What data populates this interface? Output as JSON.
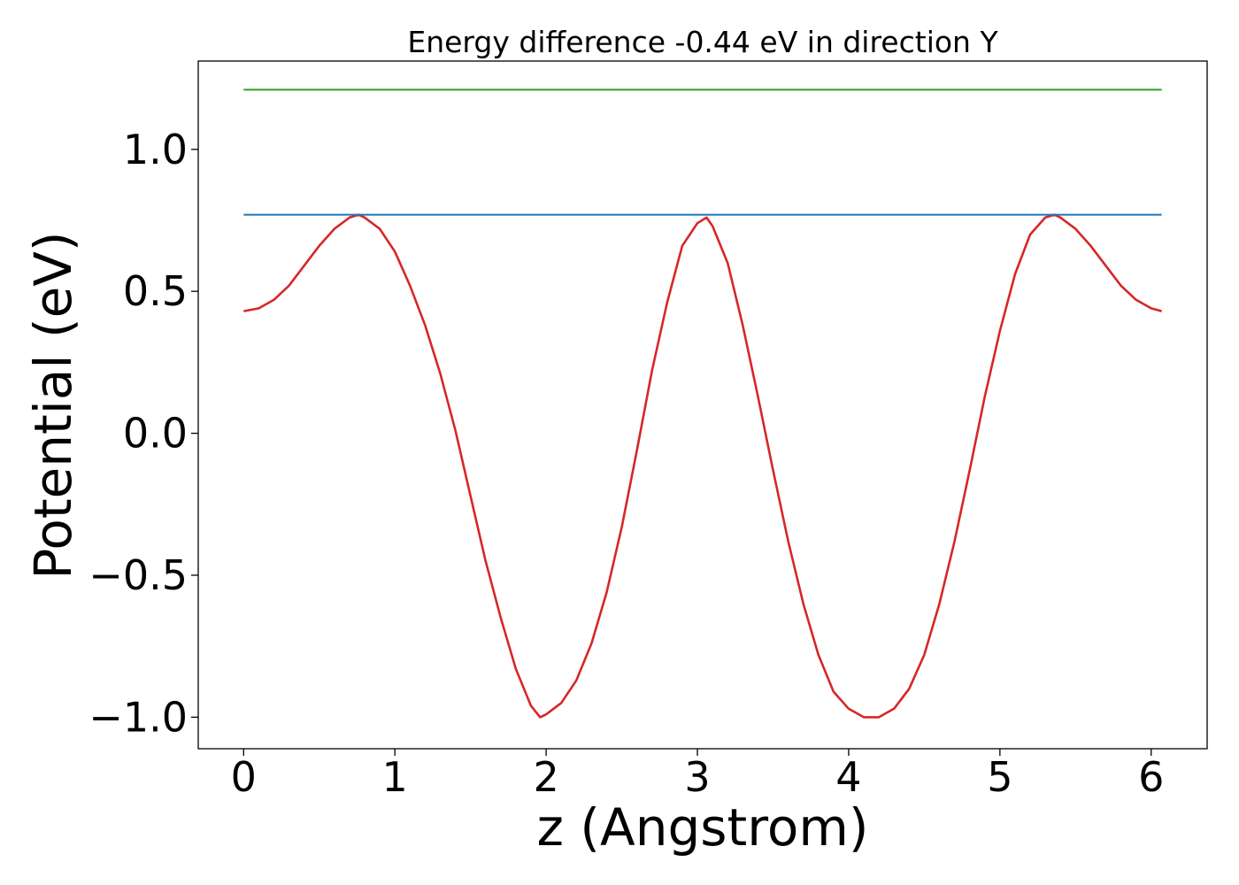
{
  "chart_data": {
    "type": "line",
    "title": "Energy difference -0.44 eV in direction Y",
    "xlabel": "z (Angstrom)",
    "ylabel": "Potential (eV)",
    "xlim": [
      -0.3,
      6.37
    ],
    "ylim": [
      -1.111,
      1.311
    ],
    "xticks": [
      0,
      1,
      2,
      3,
      4,
      5,
      6
    ],
    "xtick_labels": [
      "0",
      "1",
      "2",
      "3",
      "4",
      "5",
      "6"
    ],
    "yticks": [
      -1.0,
      -0.5,
      0.0,
      0.5,
      1.0
    ],
    "ytick_labels": [
      "−1.0",
      "−0.5",
      "0.0",
      "0.5",
      "1.0"
    ],
    "grid": false,
    "legend": "none",
    "series": [
      {
        "color": "#d62728",
        "x": [
          0.0,
          0.1,
          0.2,
          0.3,
          0.4,
          0.5,
          0.6,
          0.7,
          0.76,
          0.8,
          0.9,
          1.0,
          1.1,
          1.2,
          1.3,
          1.4,
          1.5,
          1.6,
          1.7,
          1.8,
          1.9,
          1.96,
          2.0,
          2.1,
          2.2,
          2.3,
          2.4,
          2.5,
          2.6,
          2.7,
          2.8,
          2.9,
          3.0,
          3.06,
          3.1,
          3.2,
          3.3,
          3.4,
          3.5,
          3.6,
          3.7,
          3.8,
          3.9,
          4.0,
          4.1,
          4.2,
          4.3,
          4.4,
          4.5,
          4.6,
          4.7,
          4.8,
          4.9,
          5.0,
          5.1,
          5.2,
          5.3,
          5.36,
          5.4,
          5.5,
          5.6,
          5.7,
          5.8,
          5.9,
          6.0,
          6.07
        ],
        "y": [
          0.43,
          0.44,
          0.47,
          0.52,
          0.59,
          0.66,
          0.72,
          0.76,
          0.77,
          0.76,
          0.72,
          0.64,
          0.52,
          0.38,
          0.21,
          0.01,
          -0.22,
          -0.45,
          -0.65,
          -0.83,
          -0.96,
          -1.0,
          -0.99,
          -0.95,
          -0.87,
          -0.74,
          -0.56,
          -0.33,
          -0.06,
          0.22,
          0.46,
          0.66,
          0.74,
          0.76,
          0.73,
          0.6,
          0.38,
          0.13,
          -0.13,
          -0.38,
          -0.6,
          -0.78,
          -0.91,
          -0.97,
          -1.0,
          -1.0,
          -0.97,
          -0.9,
          -0.78,
          -0.6,
          -0.38,
          -0.13,
          0.13,
          0.36,
          0.56,
          0.7,
          0.76,
          0.77,
          0.76,
          0.72,
          0.66,
          0.59,
          0.52,
          0.47,
          0.44,
          0.43
        ]
      },
      {
        "color": "#1f77b4",
        "x": [
          0.0,
          6.07
        ],
        "y": [
          0.77,
          0.77
        ]
      },
      {
        "color": "#2ca02c",
        "x": [
          0.0,
          6.07
        ],
        "y": [
          1.21,
          1.21
        ]
      }
    ]
  }
}
